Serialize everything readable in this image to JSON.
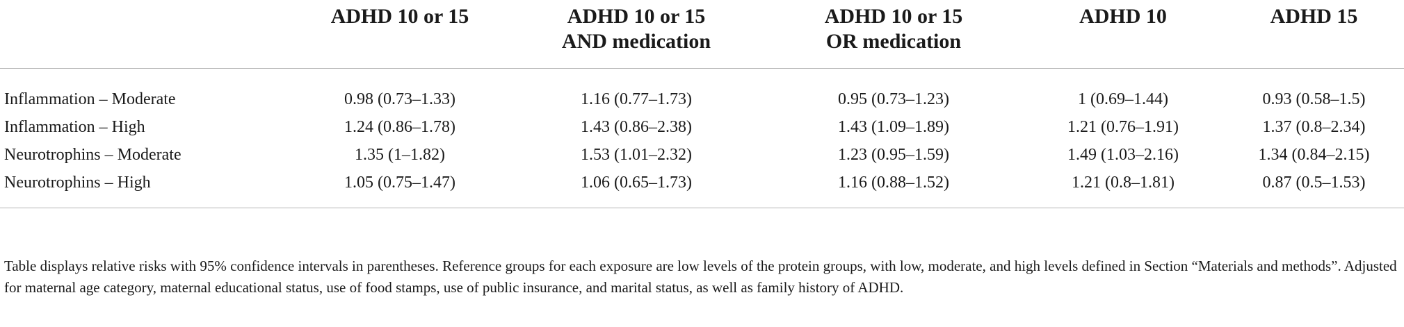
{
  "table": {
    "headers": [
      "",
      "ADHD 10 or 15",
      "ADHD 10 or 15\nAND medication",
      "ADHD 10 or 15\nOR medication",
      "ADHD 10",
      "ADHD 15"
    ],
    "rows": [
      {
        "label": "Inflammation – Moderate",
        "values": [
          "0.98 (0.73–1.33)",
          "1.16 (0.77–1.73)",
          "0.95 (0.73–1.23)",
          "1 (0.69–1.44)",
          "0.93 (0.58–1.5)"
        ]
      },
      {
        "label": "Inflammation – High",
        "values": [
          "1.24 (0.86–1.78)",
          "1.43 (0.86–2.38)",
          "1.43 (1.09–1.89)",
          "1.21 (0.76–1.91)",
          "1.37 (0.8–2.34)"
        ]
      },
      {
        "label": "Neurotrophins – Moderate",
        "values": [
          "1.35 (1–1.82)",
          "1.53 (1.01–2.32)",
          "1.23 (0.95–1.59)",
          "1.49 (1.03–2.16)",
          "1.34 (0.84–2.15)"
        ]
      },
      {
        "label": "Neurotrophins – High",
        "values": [
          "1.05 (0.75–1.47)",
          "1.06 (0.65–1.73)",
          "1.16 (0.88–1.52)",
          "1.21 (0.8–1.81)",
          "0.87 (0.5–1.53)"
        ]
      }
    ]
  },
  "footnote": "Table displays relative risks with 95% confidence intervals in parentheses. Reference groups for each exposure are low levels of the protein groups, with low, moderate, and high levels defined in Section “Materials and methods”. Adjusted for maternal age category, maternal educational status, use of food stamps, use of public insurance, and marital status, as well as family history of ADHD."
}
